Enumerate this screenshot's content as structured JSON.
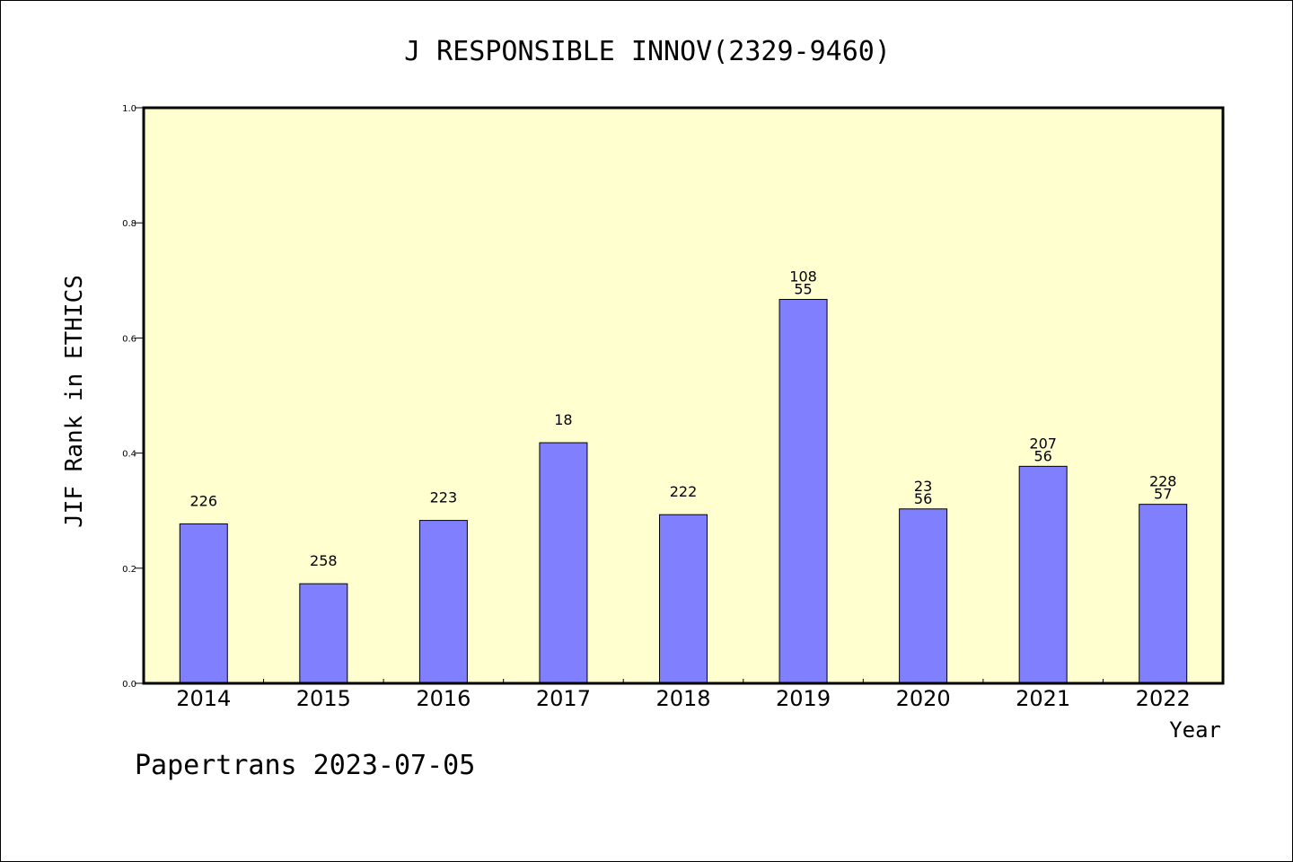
{
  "chart_data": {
    "type": "bar",
    "title": "J RESPONSIBLE INNOV(2329-9460)",
    "xlabel": "Year",
    "ylabel": "JIF Rank in ETHICS",
    "ylim": [
      0.0,
      1.0
    ],
    "yticks": [
      "0.0",
      "0.2",
      "0.4",
      "0.6",
      "0.8",
      "1.0"
    ],
    "categories": [
      "2014",
      "2015",
      "2016",
      "2017",
      "2018",
      "2019",
      "2020",
      "2021",
      "2022"
    ],
    "values": [
      0.277,
      0.173,
      0.283,
      0.418,
      0.293,
      0.667,
      0.303,
      0.377,
      0.311
    ],
    "data_labels": [
      [
        "226"
      ],
      [
        "258"
      ],
      [
        "223"
      ],
      [
        "18"
      ],
      [
        "222"
      ],
      [
        "108",
        "55"
      ],
      [
        "23",
        "56"
      ],
      [
        "207",
        "56"
      ],
      [
        "228",
        "57"
      ]
    ],
    "grid": false,
    "colors": {
      "bar": "#8080ff",
      "plot_bg": "#ffffd0",
      "axis": "#000000"
    }
  },
  "footer": "Papertrans 2023-07-05"
}
